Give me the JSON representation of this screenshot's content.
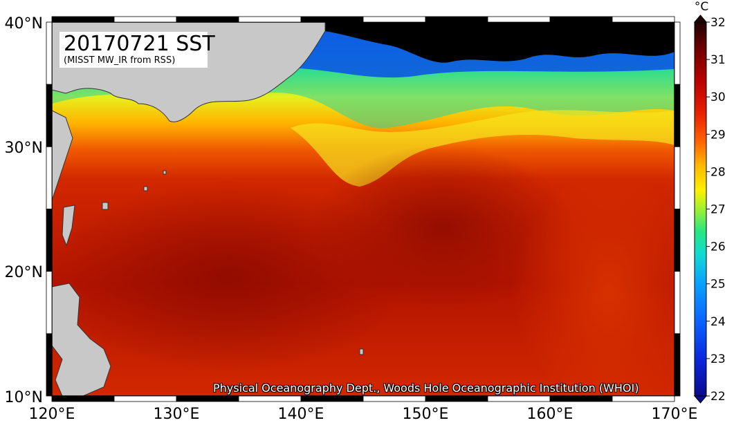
{
  "title": "20170721 SST",
  "subtitle": "(MISST MW_IR from RSS)",
  "credit": "Physical Oceanography Dept., Woods Hole Oceanographic Institution (WHOI)",
  "map": {
    "lon_range": [
      120,
      170
    ],
    "lat_range": [
      10,
      40
    ],
    "lon_ticks": [
      "120°E",
      "130°E",
      "140°E",
      "150°E",
      "160°E",
      "170°E"
    ],
    "lat_ticks": [
      "40°N",
      "30°N",
      "20°N",
      "10°N"
    ],
    "land_color": "#c8c8c8",
    "missing_color": "#000000"
  },
  "colorbar": {
    "unit": "°C",
    "min": 22,
    "max": 32,
    "tick_labels": [
      "32",
      "31",
      "30",
      "29",
      "28",
      "27",
      "26",
      "25",
      "24",
      "23",
      "22"
    ],
    "colors": [
      "#0a0a8c",
      "#0a28dc",
      "#0a64ff",
      "#0aa0ff",
      "#10dcd2",
      "#28e682",
      "#a0f032",
      "#fff000",
      "#ffb400",
      "#ff6400",
      "#e61e00",
      "#b40000",
      "#6e0000",
      "#1e0000"
    ]
  }
}
